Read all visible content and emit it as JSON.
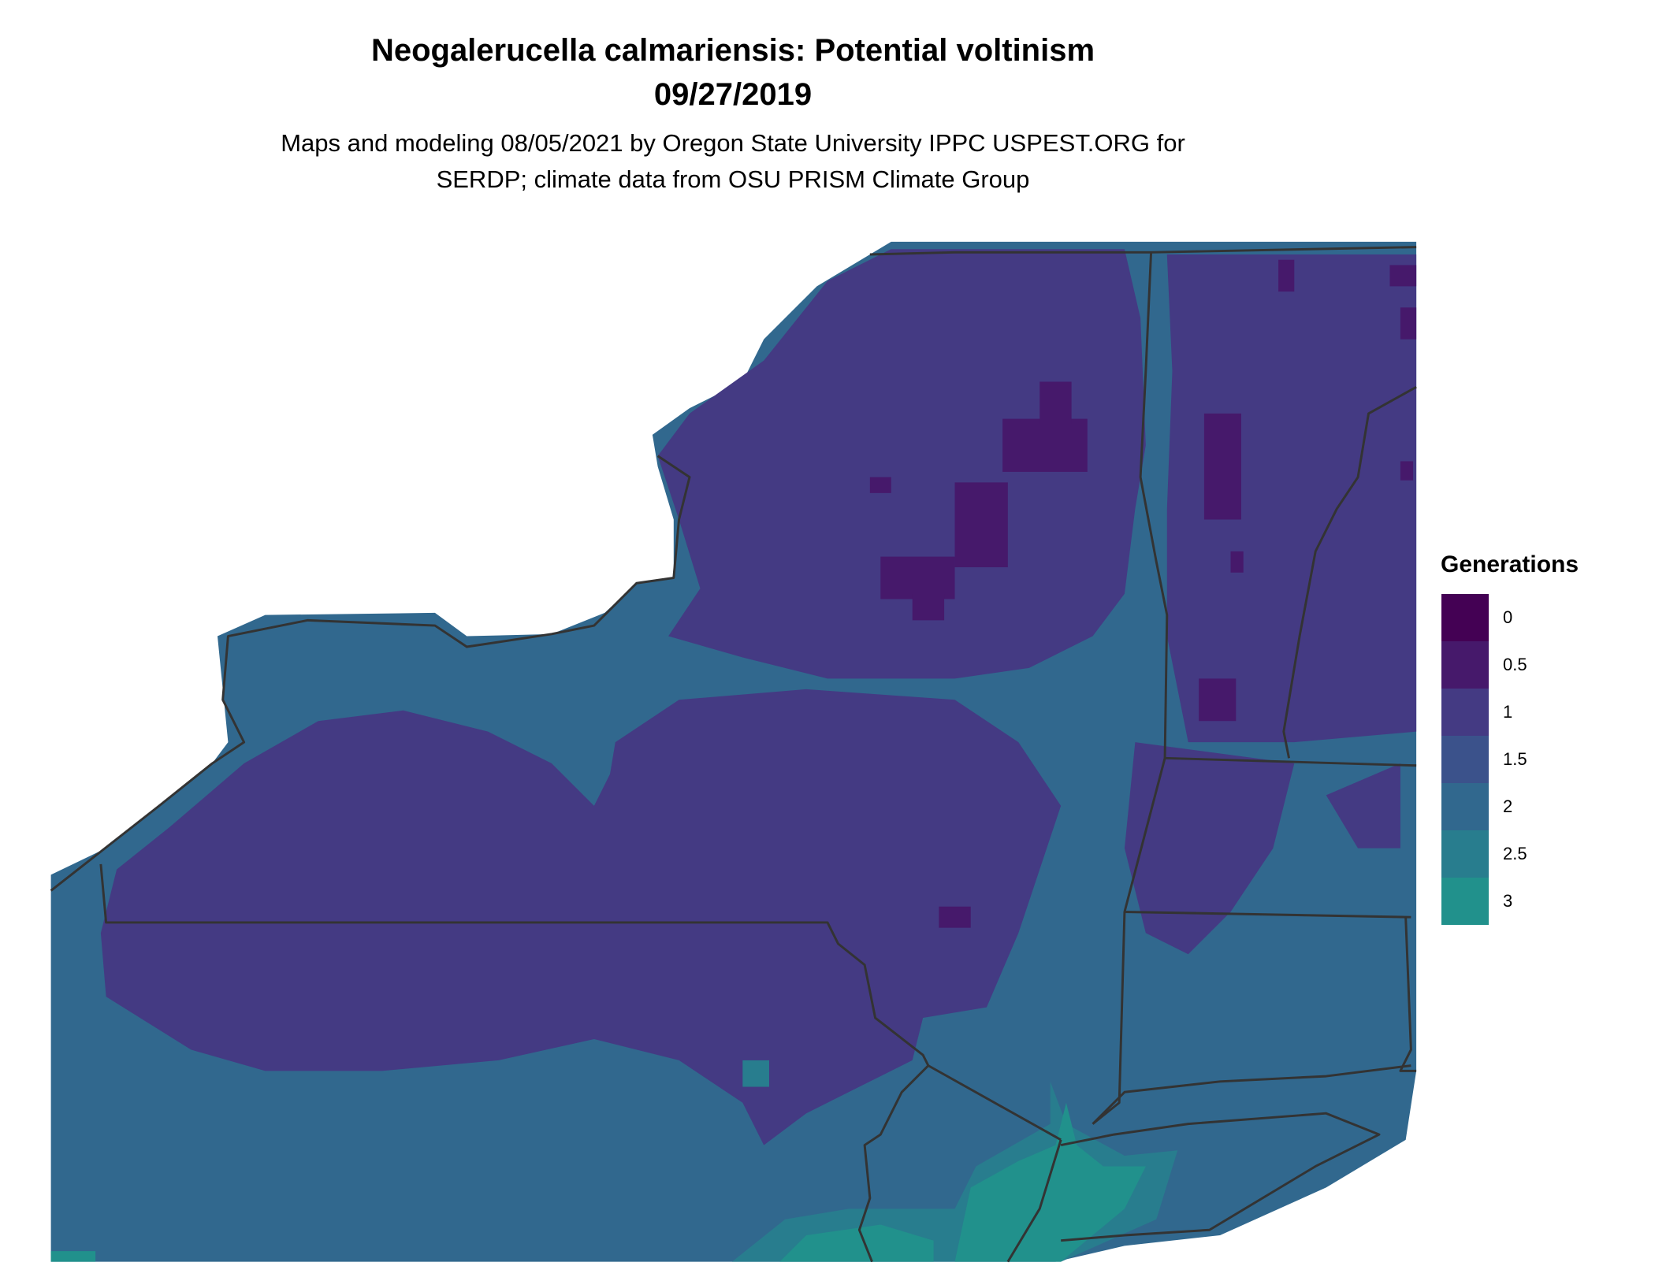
{
  "title": "Neogalerucella calmariensis: Potential voltinism",
  "date": "09/27/2019",
  "subtitle_line1": "Maps and modeling 08/05/2021 by Oregon State University IPPC USPEST.ORG for",
  "subtitle_line2": "SERDP; climate data from OSU PRISM Climate Group",
  "legend": {
    "title": "Generations",
    "items": [
      {
        "label": "0",
        "color": "#440154"
      },
      {
        "label": "0.5",
        "color": "#46196b"
      },
      {
        "label": "1",
        "color": "#443a83"
      },
      {
        "label": "1.5",
        "color": "#3b528b"
      },
      {
        "label": "2",
        "color": "#31688e"
      },
      {
        "label": "2.5",
        "color": "#287d8e"
      },
      {
        "label": "3",
        "color": "#21918c"
      }
    ]
  },
  "border_color": "#333333"
}
